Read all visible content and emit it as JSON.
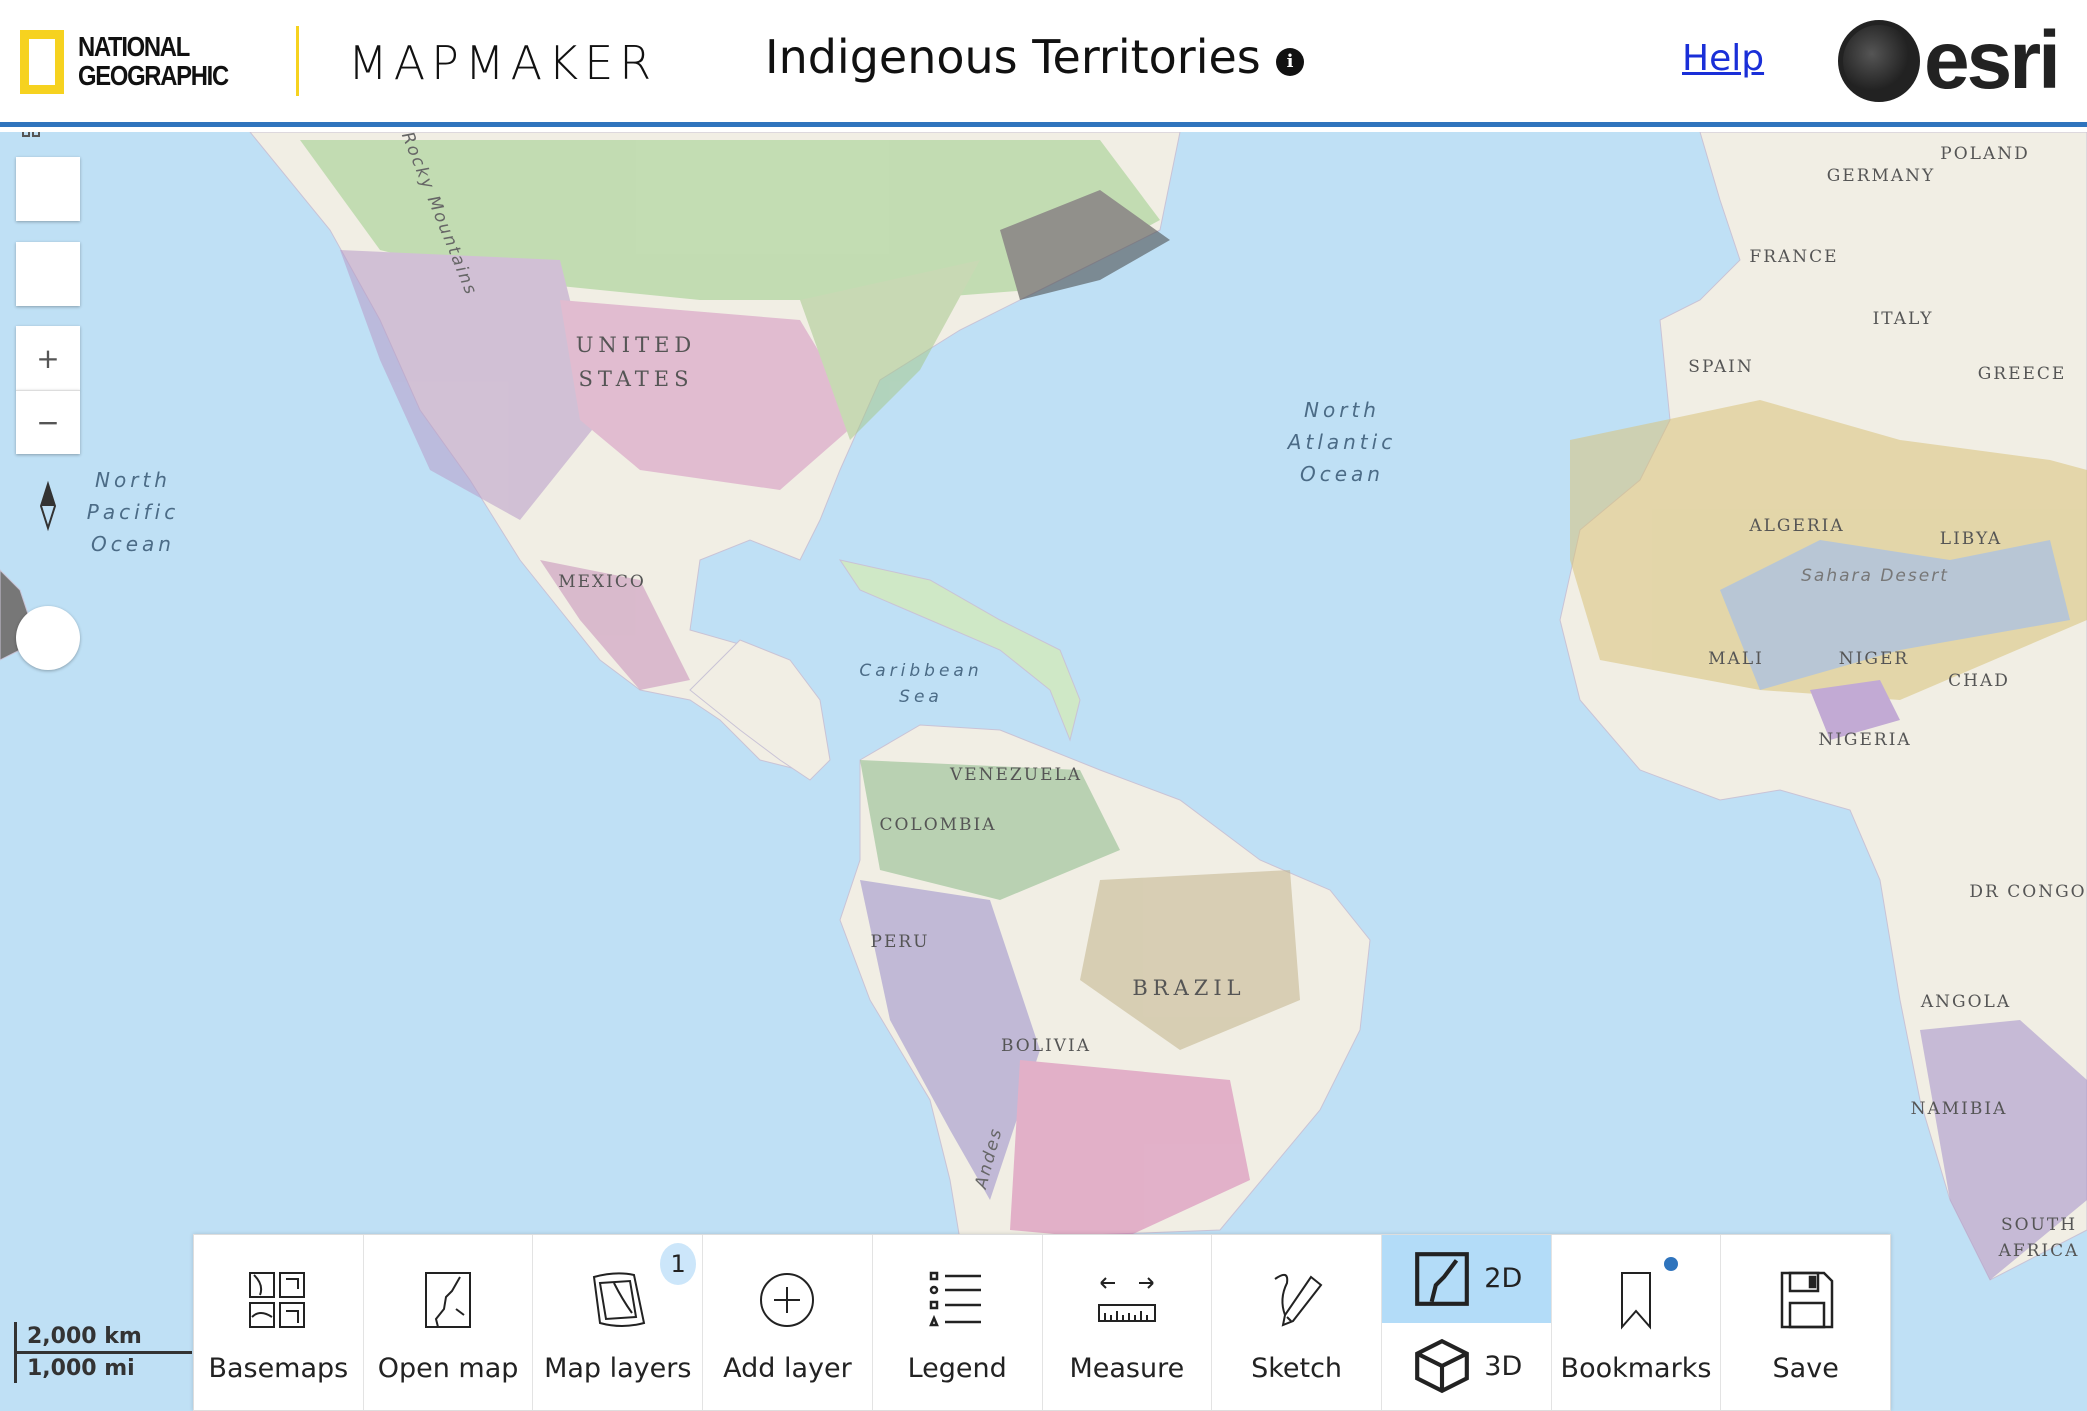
{
  "header": {
    "logo_text": "NATIONAL GEOGRAPHIC",
    "app_name": "MAPMAKER",
    "map_title": "Indigenous Territories",
    "info_icon": "info-icon",
    "help_link": "Help",
    "partner_logo": "esri"
  },
  "colors": {
    "accent": "#2f74bd",
    "ng_yellow": "#f6d21f",
    "water": "#bfe0f5",
    "active_toggle": "#b3dcf8",
    "link": "#1a2fd8"
  },
  "controls": {
    "search_icon": "search-icon",
    "home_icon": "home-icon",
    "zoom_in": "+",
    "zoom_out": "−",
    "compass_icon": "compass-icon"
  },
  "scale": {
    "km": "2,000 km",
    "mi": "1,000 mi"
  },
  "labels": {
    "north_pacific": [
      "North",
      "Pacific",
      "Ocean"
    ],
    "north_atlantic": [
      "North",
      "Atlantic",
      "Ocean"
    ],
    "caribbean": [
      "Caribbean",
      "Sea"
    ],
    "rocky": "Rocky Mountains",
    "andes": "Andes",
    "sahara": "Sahara Desert",
    "united_states": [
      "UNITED",
      "STATES"
    ],
    "mexico": "MEXICO",
    "venezuela": "VENEZUELA",
    "colombia": "COLOMBIA",
    "peru": "PERU",
    "brazil": "BRAZIL",
    "bolivia": "BOLIVIA",
    "germany": "GERMANY",
    "poland": "POLAND",
    "france": "FRANCE",
    "italy": "ITALY",
    "spain": "SPAIN",
    "greece": "GREECE",
    "algeria": "ALGERIA",
    "libya": "LIBYA",
    "mali": "MALI",
    "niger": "NIGER",
    "chad": "CHAD",
    "nigeria": "NIGERIA",
    "dr_congo": "DR CONGO",
    "angola": "ANGOLA",
    "namibia": "NAMIBIA",
    "south_africa": [
      "SOUTH",
      "AFRICA"
    ]
  },
  "toolbar": {
    "basemaps": "Basemaps",
    "open_map": "Open map",
    "map_layers": "Map layers",
    "map_layers_badge": "1",
    "add_layer": "Add layer",
    "legend": "Legend",
    "measure": "Measure",
    "sketch": "Sketch",
    "mode_2d": "2D",
    "mode_3d": "3D",
    "active_mode": "2D",
    "bookmarks": "Bookmarks",
    "save": "Save"
  }
}
